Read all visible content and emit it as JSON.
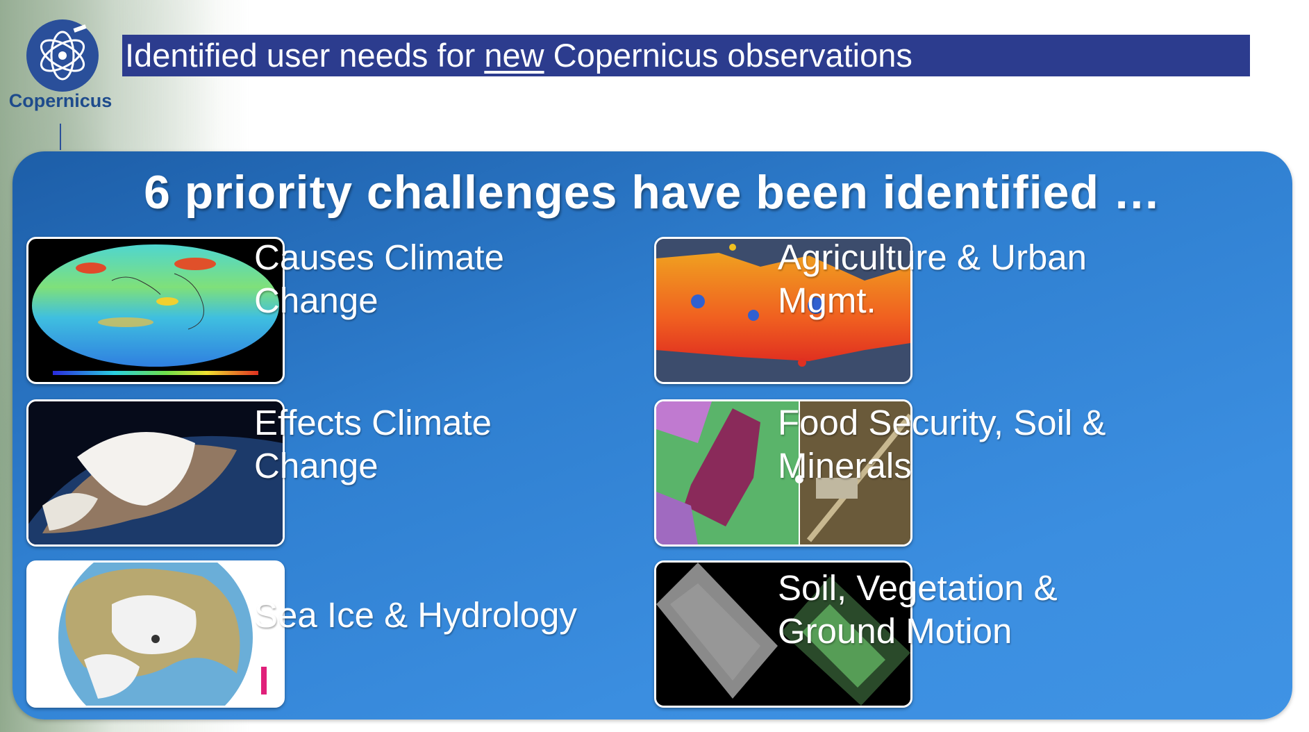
{
  "header": {
    "logo_text": "Copernicus",
    "title_before": "Identified user needs for ",
    "title_underlined": "new",
    "title_after": " Copernicus observations"
  },
  "panel": {
    "heading": "6 priority challenges have been identified …",
    "challenges": [
      {
        "label_line1": "Causes Climate",
        "label_line2": "Change",
        "image": "global-co2-map"
      },
      {
        "label_line1": "Agriculture & Urban",
        "label_line2": "Mgmt.",
        "image": "island-thermal-map"
      },
      {
        "label_line1": "Effects Climate",
        "label_line2": "Change",
        "image": "greenland-globe-view"
      },
      {
        "label_line1": "Food Security, Soil &",
        "label_line2": "Minerals",
        "image": "field-hyperspectral-comparison"
      },
      {
        "label_line1": "Sea Ice & Hydrology",
        "label_line2": "",
        "image": "arctic-polar-map"
      },
      {
        "label_line1": "Soil, Vegetation &",
        "label_line2": "Ground Motion",
        "image": "sar-image-swaths"
      }
    ]
  },
  "colors": {
    "title_bar": "#2c3c8e",
    "panel_blue": "#2f7fd0",
    "logo_blue": "#1e4b8c"
  }
}
